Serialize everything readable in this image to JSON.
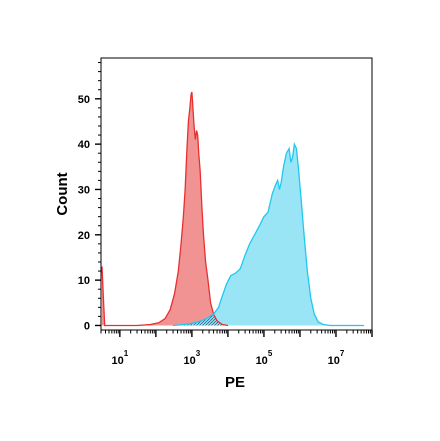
{
  "chart_data": {
    "type": "area",
    "title": "",
    "xlabel": "PE",
    "ylabel": "Count",
    "x_scale": "log10",
    "xlim": [
      3,
      100000000
    ],
    "ylim": [
      -1,
      59
    ],
    "x_ticks": [
      {
        "base": "10",
        "exp": "1",
        "value": 10
      },
      {
        "base": "10",
        "exp": "3",
        "value": 1000
      },
      {
        "base": "10",
        "exp": "5",
        "value": 100000
      },
      {
        "base": "10",
        "exp": "7",
        "value": 10000000
      }
    ],
    "y_ticks": [
      0,
      10,
      20,
      30,
      40,
      50
    ],
    "grid": false,
    "legend": "none",
    "series": [
      {
        "color": "#f08080",
        "stroke": "#e83030",
        "points": [
          [
            3.2,
            13
          ],
          [
            3.5,
            6
          ],
          [
            3.8,
            0
          ],
          [
            6,
            0
          ],
          [
            30,
            0
          ],
          [
            70,
            0.2
          ],
          [
            120,
            0.6
          ],
          [
            180,
            1.5
          ],
          [
            250,
            3.5
          ],
          [
            330,
            7
          ],
          [
            420,
            12
          ],
          [
            500,
            18
          ],
          [
            580,
            24
          ],
          [
            650,
            30
          ],
          [
            720,
            38
          ],
          [
            800,
            45
          ],
          [
            880,
            48
          ],
          [
            950,
            51
          ],
          [
            1000,
            51.5
          ],
          [
            1050,
            49
          ],
          [
            1150,
            44
          ],
          [
            1250,
            41
          ],
          [
            1350,
            43
          ],
          [
            1450,
            42
          ],
          [
            1550,
            38
          ],
          [
            1700,
            34
          ],
          [
            1900,
            26
          ],
          [
            2100,
            20
          ],
          [
            2400,
            14
          ],
          [
            2800,
            10
          ],
          [
            3300,
            5
          ],
          [
            4000,
            2.5
          ],
          [
            5000,
            1
          ],
          [
            7000,
            0.2
          ],
          [
            10000,
            0
          ]
        ]
      },
      {
        "color": "#87e1f5",
        "stroke": "#20c8ee",
        "points": [
          [
            300,
            0
          ],
          [
            800,
            0.3
          ],
          [
            1500,
            0.8
          ],
          [
            2500,
            1.5
          ],
          [
            4000,
            2.5
          ],
          [
            5500,
            4
          ],
          [
            7000,
            6.5
          ],
          [
            9000,
            9
          ],
          [
            12000,
            11
          ],
          [
            16000,
            11.5
          ],
          [
            22000,
            12.5
          ],
          [
            30000,
            15.5
          ],
          [
            40000,
            18
          ],
          [
            55000,
            20
          ],
          [
            75000,
            22
          ],
          [
            100000,
            24
          ],
          [
            130000,
            25
          ],
          [
            170000,
            29
          ],
          [
            210000,
            31
          ],
          [
            240000,
            32
          ],
          [
            270000,
            30
          ],
          [
            300000,
            31.5
          ],
          [
            350000,
            35
          ],
          [
            420000,
            38
          ],
          [
            500000,
            39
          ],
          [
            560000,
            36
          ],
          [
            620000,
            37
          ],
          [
            700000,
            40
          ],
          [
            800000,
            39
          ],
          [
            900000,
            35
          ],
          [
            1100000,
            27
          ],
          [
            1300000,
            20
          ],
          [
            1600000,
            12
          ],
          [
            2000000,
            6
          ],
          [
            2500000,
            2.5
          ],
          [
            3200000,
            0.8
          ],
          [
            4500000,
            0.2
          ],
          [
            7000000,
            0
          ],
          [
            60000000,
            0
          ]
        ]
      }
    ]
  }
}
